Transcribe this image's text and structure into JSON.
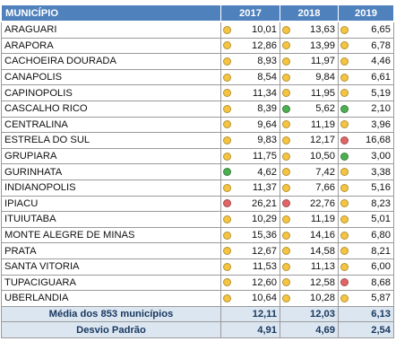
{
  "colors": {
    "header_bg": "#4f81bd",
    "footer_bg": "#dce6f1",
    "status_yellow": "#f5c542",
    "status_green": "#4caf50",
    "status_red": "#e06666"
  },
  "chart_data": {
    "type": "table",
    "columns": [
      "MUNICÍPIO",
      "2017",
      "2018",
      "2019"
    ],
    "rows": [
      {
        "name": "ARAGUARI",
        "values": [
          "10,01",
          "13,63",
          "6,65"
        ],
        "status": [
          "yellow",
          "yellow",
          "yellow"
        ]
      },
      {
        "name": "ARAPORA",
        "values": [
          "12,86",
          "13,99",
          "6,78"
        ],
        "status": [
          "yellow",
          "yellow",
          "yellow"
        ]
      },
      {
        "name": "CACHOEIRA DOURADA",
        "values": [
          "8,93",
          "11,97",
          "4,46"
        ],
        "status": [
          "yellow",
          "yellow",
          "yellow"
        ]
      },
      {
        "name": "CANAPOLIS",
        "values": [
          "8,54",
          "9,84",
          "6,61"
        ],
        "status": [
          "yellow",
          "yellow",
          "yellow"
        ]
      },
      {
        "name": "CAPINOPOLIS",
        "values": [
          "11,34",
          "11,95",
          "5,19"
        ],
        "status": [
          "yellow",
          "yellow",
          "yellow"
        ]
      },
      {
        "name": "CASCALHO RICO",
        "values": [
          "8,39",
          "5,62",
          "2,10"
        ],
        "status": [
          "yellow",
          "green",
          "green"
        ]
      },
      {
        "name": "CENTRALINA",
        "values": [
          "9,64",
          "11,19",
          "3,96"
        ],
        "status": [
          "yellow",
          "yellow",
          "yellow"
        ]
      },
      {
        "name": "ESTRELA DO SUL",
        "values": [
          "9,83",
          "12,17",
          "16,68"
        ],
        "status": [
          "yellow",
          "yellow",
          "red"
        ]
      },
      {
        "name": "GRUPIARA",
        "values": [
          "11,75",
          "10,50",
          "3,00"
        ],
        "status": [
          "yellow",
          "yellow",
          "green"
        ]
      },
      {
        "name": "GURINHATA",
        "values": [
          "4,62",
          "7,42",
          "3,38"
        ],
        "status": [
          "green",
          "yellow",
          "yellow"
        ]
      },
      {
        "name": "INDIANOPOLIS",
        "values": [
          "11,37",
          "7,66",
          "5,16"
        ],
        "status": [
          "yellow",
          "yellow",
          "yellow"
        ]
      },
      {
        "name": "IPIACU",
        "values": [
          "26,21",
          "22,76",
          "8,23"
        ],
        "status": [
          "red",
          "red",
          "yellow"
        ]
      },
      {
        "name": "ITUIUTABA",
        "values": [
          "10,29",
          "11,19",
          "5,01"
        ],
        "status": [
          "yellow",
          "yellow",
          "yellow"
        ]
      },
      {
        "name": "MONTE ALEGRE DE MINAS",
        "values": [
          "15,36",
          "14,16",
          "6,80"
        ],
        "status": [
          "yellow",
          "yellow",
          "yellow"
        ]
      },
      {
        "name": "PRATA",
        "values": [
          "12,67",
          "14,58",
          "8,21"
        ],
        "status": [
          "yellow",
          "yellow",
          "yellow"
        ]
      },
      {
        "name": "SANTA VITORIA",
        "values": [
          "11,53",
          "11,13",
          "6,00"
        ],
        "status": [
          "yellow",
          "yellow",
          "yellow"
        ]
      },
      {
        "name": "TUPACIGUARA",
        "values": [
          "12,60",
          "12,58",
          "8,68"
        ],
        "status": [
          "yellow",
          "yellow",
          "red"
        ]
      },
      {
        "name": "UBERLANDIA",
        "values": [
          "10,64",
          "10,28",
          "5,87"
        ],
        "status": [
          "yellow",
          "yellow",
          "yellow"
        ]
      }
    ],
    "footer": [
      {
        "label": "Média dos 853 municípios",
        "values": [
          "12,11",
          "12,03",
          "6,13"
        ]
      },
      {
        "label": "Desvio Padrão",
        "values": [
          "4,91",
          "4,69",
          "2,54"
        ]
      }
    ]
  }
}
